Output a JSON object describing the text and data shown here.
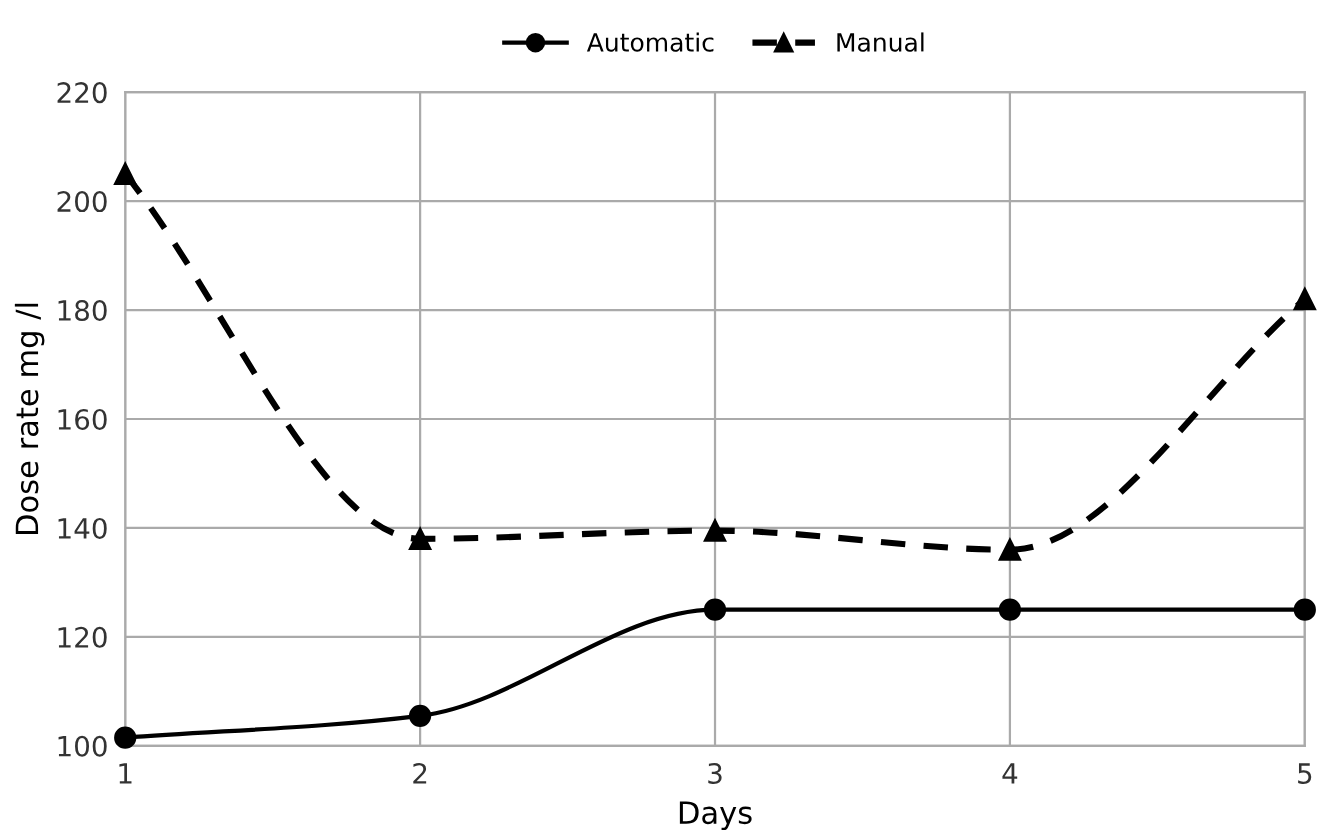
{
  "chart_data": {
    "type": "line",
    "xlabel": "Days",
    "ylabel": "Dose rate mg /l",
    "x": [
      1,
      2,
      3,
      4,
      5
    ],
    "series": [
      {
        "name": "Automatic",
        "color": "#000000",
        "values": [
          101.5,
          105.5,
          125,
          125,
          125
        ],
        "marker": "circle",
        "line_style": "solid"
      },
      {
        "name": "Manual",
        "color": "#000000",
        "values": [
          205,
          138,
          139.5,
          136,
          182
        ],
        "marker": "triangle",
        "line_style": "dashed"
      }
    ],
    "xlim": [
      1,
      5
    ],
    "xticks": [
      1,
      2,
      3,
      4,
      5
    ],
    "ylim": [
      100,
      220
    ],
    "yticks": [
      100,
      120,
      140,
      160,
      180,
      200,
      220
    ],
    "grid": true,
    "legend": "top"
  }
}
